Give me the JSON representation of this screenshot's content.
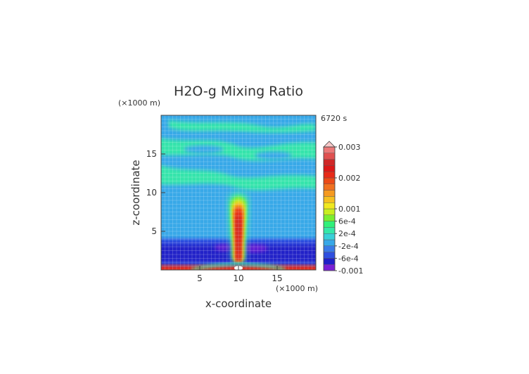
{
  "chart_data": {
    "type": "heatmap",
    "title": "H2O-g Mixing Ratio",
    "time_label": "6720 s",
    "xlabel": "x-coordinate",
    "ylabel": "z-coordinate",
    "x_unit": "(×1000 m)",
    "y_unit": "(×1000 m)",
    "xlim": [
      0,
      20
    ],
    "ylim": [
      0,
      20
    ],
    "x_ticks": [
      5,
      10,
      15
    ],
    "y_ticks": [
      5,
      10,
      15
    ],
    "x_tick_labels": [
      "5",
      "10",
      "15"
    ],
    "y_tick_labels": [
      "5",
      "10",
      "15"
    ],
    "colorbar": {
      "levels": [
        -0.001,
        -0.0008,
        -0.0006,
        -0.0004,
        -0.0002,
        0,
        0.0002,
        0.0004,
        0.0006,
        0.0008,
        0.001,
        0.0012,
        0.0014,
        0.0016,
        0.0018,
        0.002,
        0.0022,
        0.0024,
        0.0026,
        0.0028,
        0.003
      ],
      "colors": [
        "#7a1fd6",
        "#2020c8",
        "#2e4fe0",
        "#3a7ae8",
        "#38a8e8",
        "#38d0d8",
        "#34e8a8",
        "#30f07a",
        "#7aee30",
        "#c8ee20",
        "#f0e820",
        "#f5c020",
        "#f59a20",
        "#f07020",
        "#ec4a18",
        "#e82a18",
        "#dc1818",
        "#d02828",
        "#e05050",
        "#ec7878",
        "#f4a8a8"
      ],
      "tick_labels": [
        {
          "value": 0.003,
          "label": "0.003"
        },
        {
          "value": 0.002,
          "label": "0.002"
        },
        {
          "value": 0.001,
          "label": "0.001"
        },
        {
          "value": 0.0006,
          "label": "6e-4"
        },
        {
          "value": 0.0002,
          "label": "2e-4"
        },
        {
          "value": -0.0002,
          "label": "-2e-4"
        },
        {
          "value": -0.0006,
          "label": "-6e-4"
        },
        {
          "value": -0.001,
          "label": "-0.001"
        }
      ],
      "over_color": "#f8c8c8"
    }
  }
}
